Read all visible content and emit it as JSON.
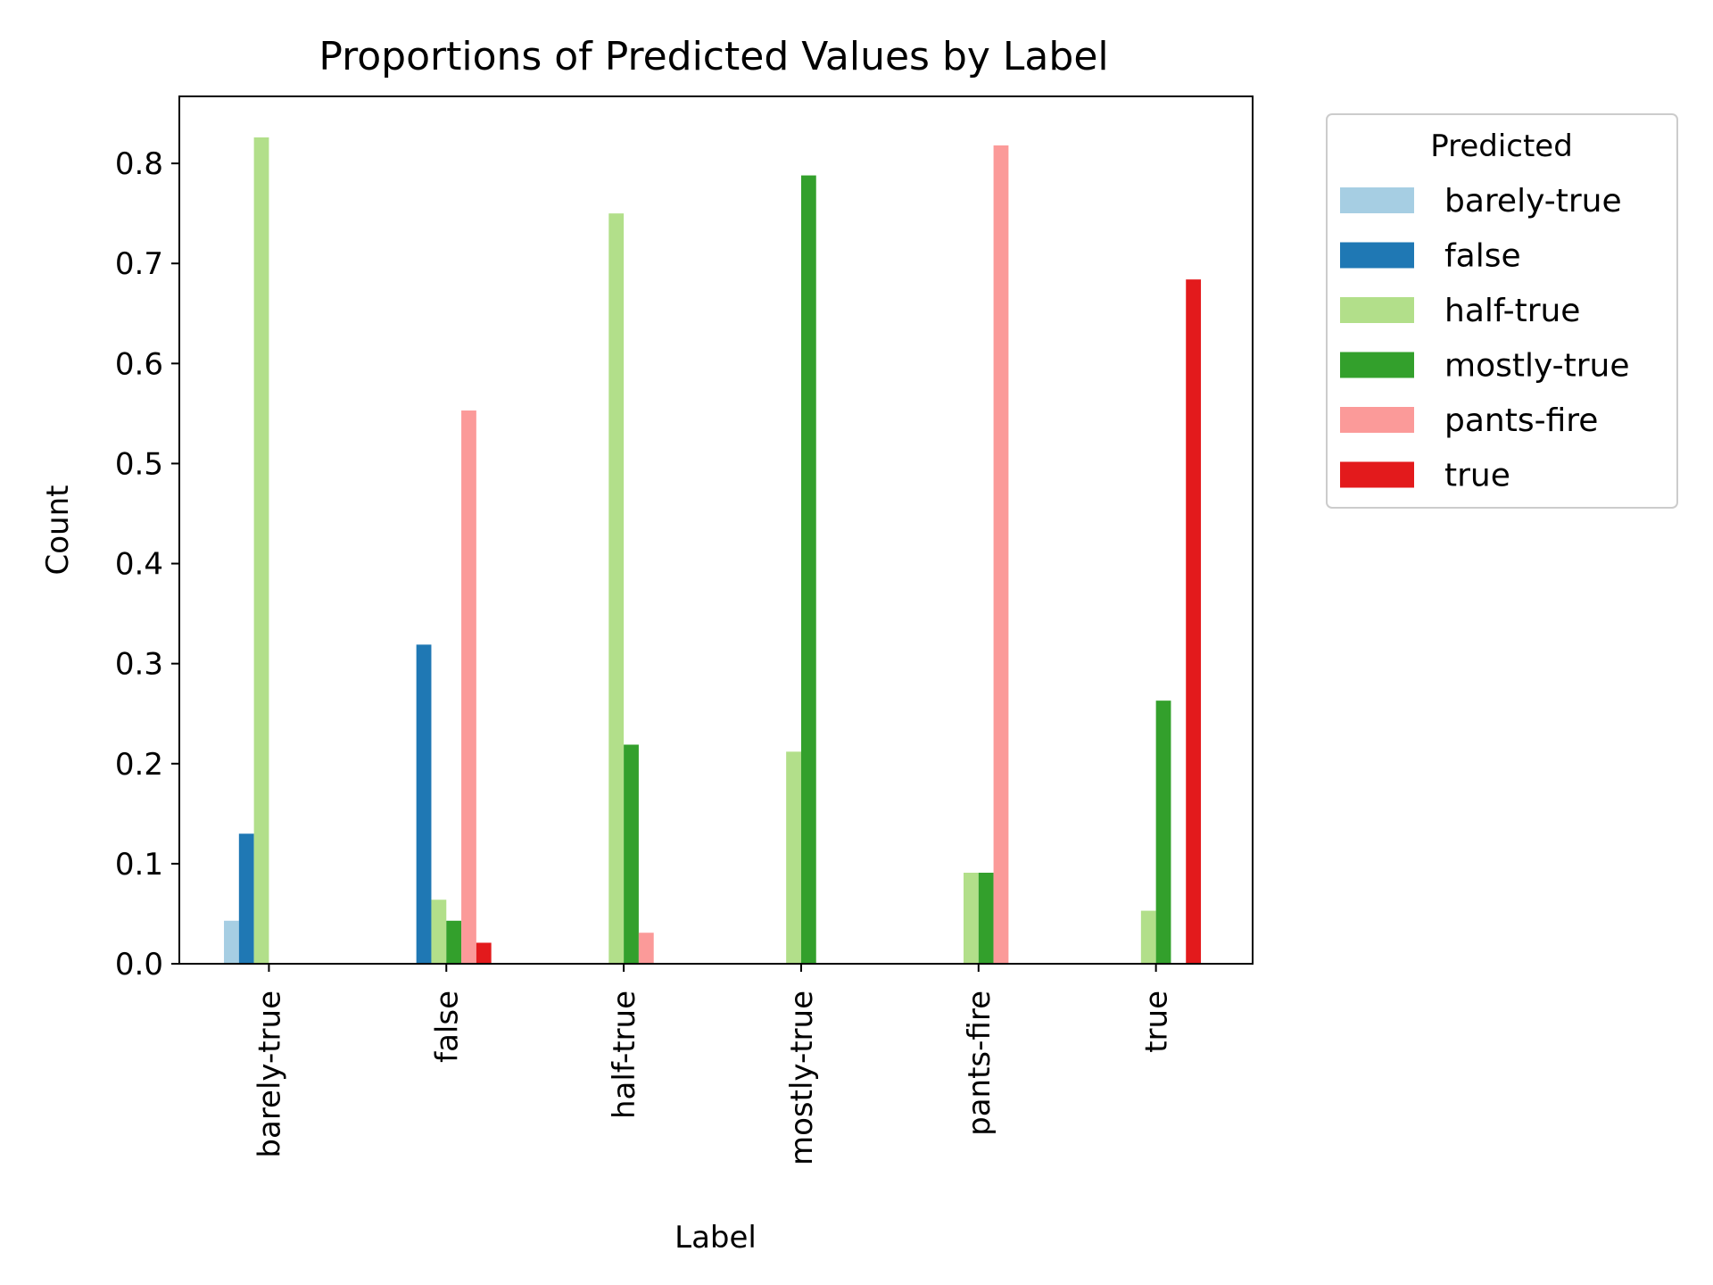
{
  "chart_data": {
    "type": "bar",
    "title": "Proportions of Predicted Values by Label",
    "xlabel": "Label",
    "ylabel": "Count",
    "categories": [
      "barely-true",
      "false",
      "half-true",
      "mostly-true",
      "pants-fire",
      "true"
    ],
    "ylim": [
      0,
      0.867
    ],
    "yticks": [
      "0.0",
      "0.1",
      "0.2",
      "0.3",
      "0.4",
      "0.5",
      "0.6",
      "0.7",
      "0.8"
    ],
    "legend": {
      "title": "Predicted",
      "position": "outside-right-top"
    },
    "grid": false,
    "series": [
      {
        "name": "barely-true",
        "color": "#a6cee3",
        "values": [
          0.043,
          0,
          0,
          0,
          0,
          0
        ]
      },
      {
        "name": "false",
        "color": "#1f78b4",
        "values": [
          0.13,
          0.319,
          0,
          0,
          0,
          0
        ]
      },
      {
        "name": "half-true",
        "color": "#b2df8a",
        "values": [
          0.826,
          0.064,
          0.75,
          0.212,
          0.091,
          0.053
        ]
      },
      {
        "name": "mostly-true",
        "color": "#33a02c",
        "values": [
          0,
          0.043,
          0.219,
          0.788,
          0.091,
          0.263
        ]
      },
      {
        "name": "pants-fire",
        "color": "#fb9a99",
        "values": [
          0,
          0.553,
          0.031,
          0,
          0.818,
          0
        ]
      },
      {
        "name": "true",
        "color": "#e31a1c",
        "values": [
          0,
          0.021,
          0,
          0,
          0,
          0.684
        ]
      }
    ]
  }
}
